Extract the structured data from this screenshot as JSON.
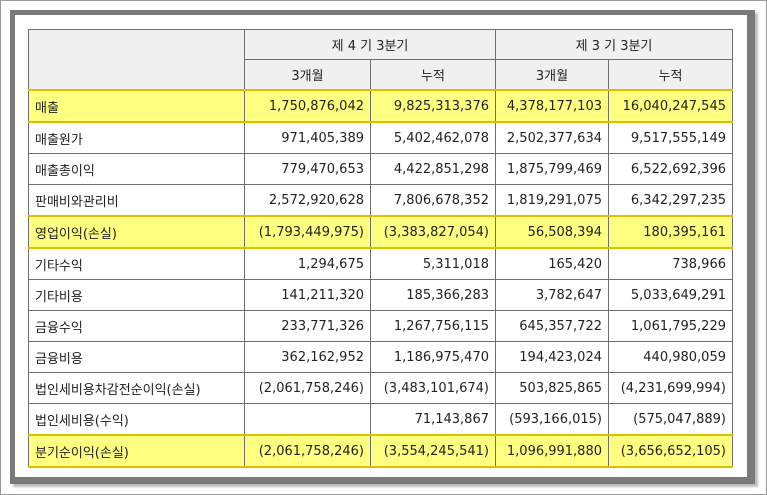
{
  "table": {
    "period_headers": [
      "제 4 기 3분기",
      "제 3 기 3분기"
    ],
    "sub_headers": [
      "3개월",
      "누적",
      "3개월",
      "누적"
    ],
    "rows": [
      {
        "label": "매출",
        "values": [
          "1,750,876,042",
          "9,825,313,376",
          "4,378,177,103",
          "16,040,247,545"
        ],
        "highlight": true
      },
      {
        "label": "매출원가",
        "values": [
          "971,405,389",
          "5,402,462,078",
          "2,502,377,634",
          "9,517,555,149"
        ],
        "highlight": false
      },
      {
        "label": "매출총이익",
        "values": [
          "779,470,653",
          "4,422,851,298",
          "1,875,799,469",
          "6,522,692,396"
        ],
        "highlight": false
      },
      {
        "label": "판매비와관리비",
        "values": [
          "2,572,920,628",
          "7,806,678,352",
          "1,819,291,075",
          "6,342,297,235"
        ],
        "highlight": false
      },
      {
        "label": "영업이익(손실)",
        "values": [
          "(1,793,449,975)",
          "(3,383,827,054)",
          "56,508,394",
          "180,395,161"
        ],
        "highlight": true
      },
      {
        "label": "기타수익",
        "values": [
          "1,294,675",
          "5,311,018",
          "165,420",
          "738,966"
        ],
        "highlight": false
      },
      {
        "label": "기타비용",
        "values": [
          "141,211,320",
          "185,366,283",
          "3,782,647",
          "5,033,649,291"
        ],
        "highlight": false
      },
      {
        "label": "금융수익",
        "values": [
          "233,771,326",
          "1,267,756,115",
          "645,357,722",
          "1,061,795,229"
        ],
        "highlight": false
      },
      {
        "label": "금융비용",
        "values": [
          "362,162,952",
          "1,186,975,470",
          "194,423,024",
          "440,980,059"
        ],
        "highlight": false
      },
      {
        "label": "법인세비용차감전순이익(손실)",
        "values": [
          "(2,061,758,246)",
          "(3,483,101,674)",
          "503,825,865",
          "(4,231,699,994)"
        ],
        "highlight": false
      },
      {
        "label": "법인세비용(수익)",
        "values": [
          "",
          "71,143,867",
          "(593,166,015)",
          "(575,047,889)"
        ],
        "highlight": false
      },
      {
        "label": "분기순이익(손실)",
        "values": [
          "(2,061,758,246)",
          "(3,554,245,541)",
          "1,096,991,880",
          "(3,656,652,105)"
        ],
        "highlight": true
      }
    ]
  },
  "colors": {
    "highlight": "#ffff80",
    "header_bg": "#f0f0f0",
    "frame": "#7a7a7a"
  }
}
